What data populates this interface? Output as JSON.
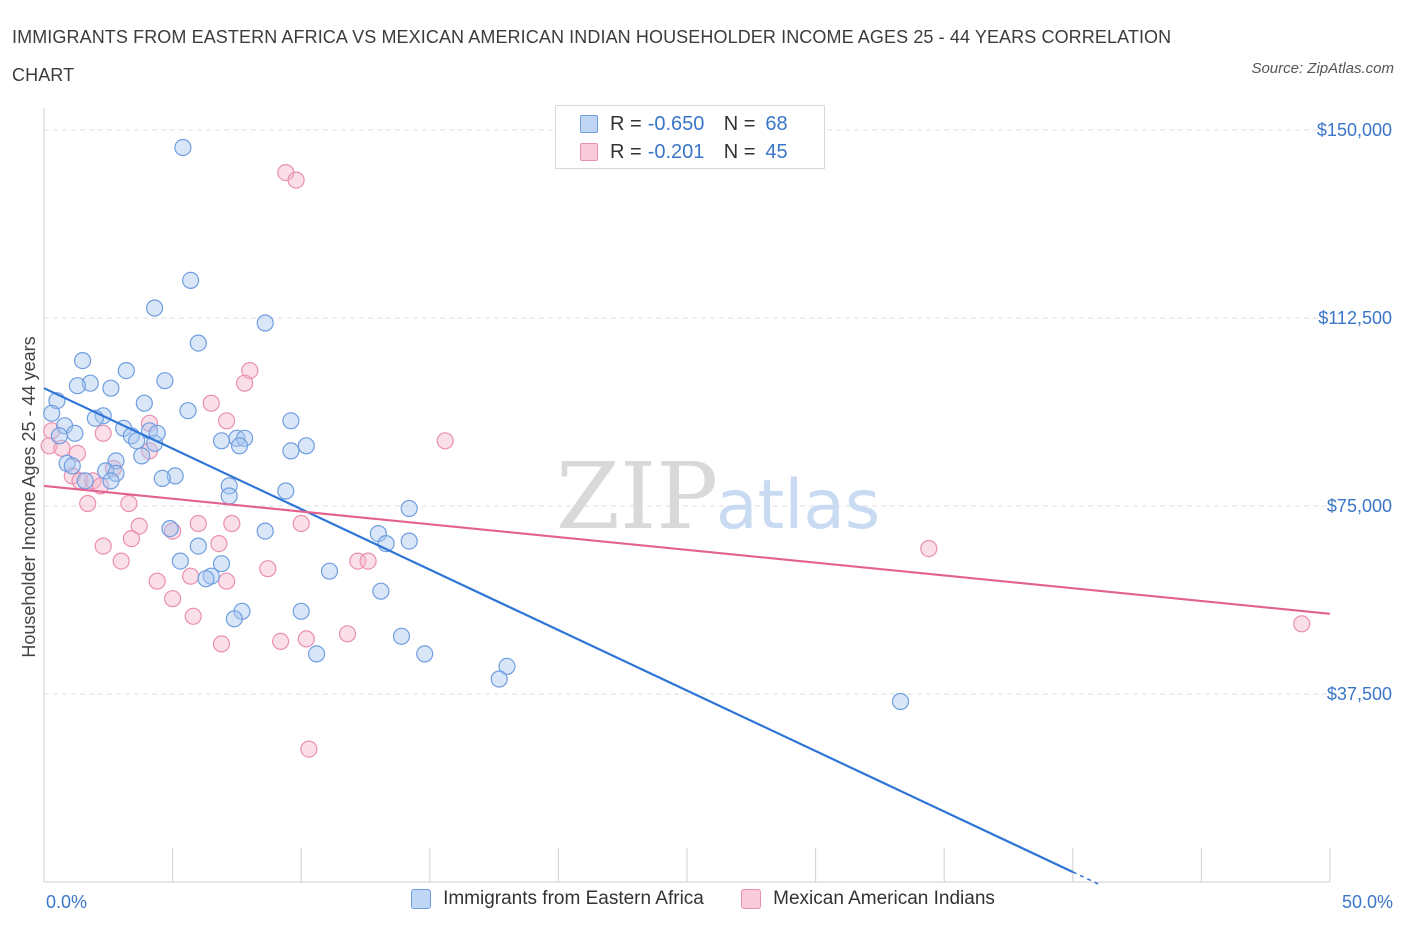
{
  "title": "IMMIGRANTS FROM EASTERN AFRICA VS MEXICAN AMERICAN INDIAN HOUSEHOLDER INCOME AGES 25 - 44 YEARS CORRELATION CHART",
  "source": "Source: ZipAtlas.com",
  "watermark": {
    "zip": "ZIP",
    "atlas": "atlas"
  },
  "legend_top": {
    "rows": [
      {
        "r_label": "R =",
        "r_value": "-0.650",
        "n_label": "N =",
        "n_value": "68"
      },
      {
        "r_label": "R =",
        "r_value": "-0.201",
        "n_label": "N =",
        "n_value": "45"
      }
    ]
  },
  "legend_bottom": {
    "series_a": "Immigrants from Eastern Africa",
    "series_b": "Mexican American Indians"
  },
  "colors": {
    "blue_fill": "#a9c8f0",
    "blue_stroke": "#6f9ee0",
    "blue_line": "#2e75d6",
    "pink_fill": "#f5b8cb",
    "pink_stroke": "#ea8fb0",
    "pink_line": "#e2618f",
    "tick_text": "#3a76c8",
    "grid": "#dedede"
  },
  "chart_data": {
    "type": "scatter",
    "title": "IMMIGRANTS FROM EASTERN AFRICA VS MEXICAN AMERICAN INDIAN HOUSEHOLDER INCOME AGES 25 - 44 YEARS CORRELATION CHART",
    "xlabel": "",
    "ylabel": "Householder Income Ages 25 - 44 years",
    "xlim": [
      0,
      50
    ],
    "ylim": [
      0,
      150000
    ],
    "x_tick_labels": [
      "0.0%",
      "50.0%"
    ],
    "y_ticks": [
      {
        "value": 37500,
        "label": "$37,500"
      },
      {
        "value": 75000,
        "label": "$75,000"
      },
      {
        "value": 112500,
        "label": "$112,500"
      },
      {
        "value": 150000,
        "label": "$150,000"
      }
    ],
    "series": [
      {
        "name": "Immigrants from Eastern Africa",
        "R": -0.65,
        "N": 68,
        "trend": {
          "x": [
            0.0,
            40.0
          ],
          "y": [
            98500,
            2000
          ],
          "dashed_extension_to_x": 41.0
        },
        "points": [
          [
            5.4,
            146500
          ],
          [
            5.7,
            120000
          ],
          [
            4.3,
            114500
          ],
          [
            8.6,
            111500
          ],
          [
            6.0,
            107500
          ],
          [
            1.5,
            104000
          ],
          [
            3.2,
            102000
          ],
          [
            4.7,
            100000
          ],
          [
            1.8,
            99500
          ],
          [
            1.3,
            99000
          ],
          [
            2.6,
            98500
          ],
          [
            0.5,
            96000
          ],
          [
            3.9,
            95500
          ],
          [
            5.6,
            94000
          ],
          [
            0.3,
            93500
          ],
          [
            2.3,
            93000
          ],
          [
            2.0,
            92500
          ],
          [
            9.6,
            92000
          ],
          [
            0.8,
            91000
          ],
          [
            3.1,
            90500
          ],
          [
            4.1,
            90000
          ],
          [
            1.2,
            89500
          ],
          [
            0.6,
            89000
          ],
          [
            3.4,
            89000
          ],
          [
            7.5,
            88500
          ],
          [
            7.8,
            88500
          ],
          [
            6.9,
            88000
          ],
          [
            3.6,
            88000
          ],
          [
            4.3,
            87500
          ],
          [
            7.6,
            87000
          ],
          [
            10.2,
            87000
          ],
          [
            9.6,
            86000
          ],
          [
            3.8,
            85000
          ],
          [
            2.8,
            84000
          ],
          [
            0.9,
            83500
          ],
          [
            1.1,
            83000
          ],
          [
            2.4,
            82000
          ],
          [
            2.8,
            81500
          ],
          [
            5.1,
            81000
          ],
          [
            4.6,
            80500
          ],
          [
            2.6,
            80000
          ],
          [
            7.2,
            79000
          ],
          [
            9.4,
            78000
          ],
          [
            7.2,
            77000
          ],
          [
            14.2,
            74500
          ],
          [
            4.9,
            70500
          ],
          [
            8.6,
            70000
          ],
          [
            13.0,
            69500
          ],
          [
            14.2,
            68000
          ],
          [
            13.3,
            67500
          ],
          [
            6.0,
            67000
          ],
          [
            5.3,
            64000
          ],
          [
            6.9,
            63500
          ],
          [
            11.1,
            62000
          ],
          [
            6.5,
            61000
          ],
          [
            6.3,
            60500
          ],
          [
            13.1,
            58000
          ],
          [
            7.7,
            54000
          ],
          [
            10.0,
            54000
          ],
          [
            7.4,
            52500
          ],
          [
            13.9,
            49000
          ],
          [
            10.6,
            45500
          ],
          [
            14.8,
            45500
          ],
          [
            18.0,
            43000
          ],
          [
            17.7,
            40500
          ],
          [
            33.3,
            36000
          ],
          [
            1.6,
            80000
          ],
          [
            4.4,
            89500
          ]
        ]
      },
      {
        "name": "Mexican American Indians",
        "R": -0.201,
        "N": 45,
        "trend": {
          "x": [
            0.0,
            50.0
          ],
          "y": [
            79000,
            53500
          ]
        },
        "points": [
          [
            9.4,
            141500
          ],
          [
            9.8,
            140000
          ],
          [
            8.0,
            102000
          ],
          [
            7.8,
            99500
          ],
          [
            6.5,
            95500
          ],
          [
            7.1,
            92000
          ],
          [
            4.1,
            91500
          ],
          [
            0.3,
            90000
          ],
          [
            2.3,
            89500
          ],
          [
            15.6,
            88000
          ],
          [
            0.2,
            87000
          ],
          [
            0.7,
            86500
          ],
          [
            1.3,
            85500
          ],
          [
            4.1,
            86000
          ],
          [
            2.7,
            82500
          ],
          [
            1.1,
            81000
          ],
          [
            1.4,
            80000
          ],
          [
            1.9,
            80000
          ],
          [
            2.2,
            79000
          ],
          [
            1.7,
            75500
          ],
          [
            3.3,
            75500
          ],
          [
            3.7,
            71000
          ],
          [
            6.0,
            71500
          ],
          [
            7.3,
            71500
          ],
          [
            10.0,
            71500
          ],
          [
            5.0,
            70000
          ],
          [
            3.4,
            68500
          ],
          [
            2.3,
            67000
          ],
          [
            6.8,
            67500
          ],
          [
            3.0,
            64000
          ],
          [
            12.2,
            64000
          ],
          [
            12.6,
            64000
          ],
          [
            8.7,
            62500
          ],
          [
            5.7,
            61000
          ],
          [
            4.4,
            60000
          ],
          [
            7.1,
            60000
          ],
          [
            5.0,
            56500
          ],
          [
            5.8,
            53000
          ],
          [
            9.2,
            48000
          ],
          [
            10.2,
            48500
          ],
          [
            11.8,
            49500
          ],
          [
            6.9,
            47500
          ],
          [
            34.4,
            66500
          ],
          [
            48.9,
            51500
          ],
          [
            10.3,
            26500
          ]
        ]
      }
    ]
  }
}
